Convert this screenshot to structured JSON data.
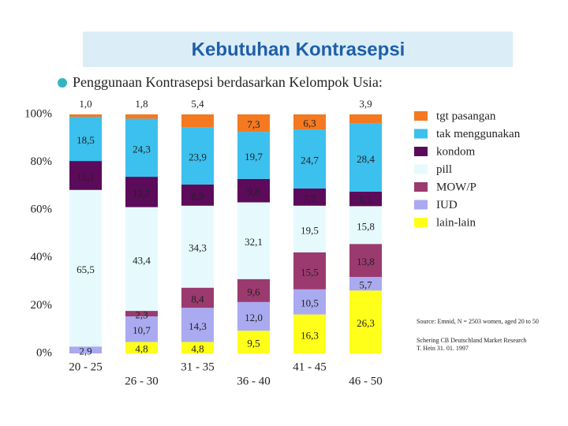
{
  "chart_data": {
    "type": "stacked_bar",
    "title": "Kebutuhan Kontrasepsi",
    "subtitle": "Penggunaan Kontrasepsi berdasarkan Kelompok Usia:",
    "categories": [
      "20 - 25",
      "26 - 30",
      "31 - 35",
      "36 - 40",
      "41 - 45",
      "46 - 50"
    ],
    "ylim": [
      0,
      100
    ],
    "yticks": [
      {
        "value": 0,
        "label": "0%"
      },
      {
        "value": 20,
        "label": "20%"
      },
      {
        "value": 40,
        "label": "40%"
      },
      {
        "value": 60,
        "label": "60%"
      },
      {
        "value": 80,
        "label": "80%"
      },
      {
        "value": 100,
        "label": "100%"
      }
    ],
    "series": [
      {
        "name": "lain-lain",
        "color": "#ffff1a",
        "values": [
          null,
          4.8,
          4.8,
          9.5,
          16.3,
          26.3
        ],
        "value_labels": [
          null,
          "4,8",
          "4,8",
          "9,5",
          "16,3",
          "26,3"
        ]
      },
      {
        "name": "IUD",
        "color": "#aaaaf0",
        "values": [
          2.9,
          10.7,
          14.3,
          12.0,
          10.5,
          5.7
        ],
        "value_labels": [
          "2,9",
          "10,7",
          "14,3",
          "12,0",
          "10,5",
          "5,7"
        ]
      },
      {
        "name": "MOW/P",
        "color": "#9b3a6e",
        "values": [
          null,
          2.3,
          8.4,
          9.6,
          15.5,
          13.8
        ],
        "value_labels": [
          null,
          "2,3",
          "8,4",
          "9,6",
          "15,5",
          "13,8"
        ]
      },
      {
        "name": "pill",
        "color": "#e6fafd",
        "values": [
          65.5,
          43.4,
          34.3,
          32.1,
          19.5,
          15.8
        ],
        "value_labels": [
          "65,5",
          "43,4",
          "34,3",
          "32,1",
          "19,5",
          "15,8"
        ]
      },
      {
        "name": "kondom",
        "color": "#5c0a5a",
        "values": [
          12.1,
          12.7,
          8.9,
          9.8,
          7.2,
          6.1
        ],
        "value_labels": [
          "12,1",
          "12,7",
          "8,9",
          "9,8",
          "7,2",
          "6,1"
        ]
      },
      {
        "name": "tak menggunakan",
        "color": "#3cc0ee",
        "values": [
          18.5,
          24.3,
          23.9,
          19.7,
          24.7,
          28.4
        ],
        "value_labels": [
          "18,5",
          "24,3",
          "23,9",
          "19,7",
          "24,7",
          "28,4"
        ]
      },
      {
        "name": "tgt pasangan",
        "color": "#f47920",
        "values": [
          1.0,
          1.8,
          5.4,
          7.3,
          6.3,
          3.9
        ],
        "value_labels": [
          "1,0",
          "1,8",
          "5,4",
          "7,3",
          "6,3",
          "3,9"
        ]
      }
    ],
    "source": [
      "Source: Emnid, N = 2503 women, aged 20 to 50",
      "Schering CB Deutschland Market Research",
      "T. Hein 31. 01. 1997"
    ]
  }
}
